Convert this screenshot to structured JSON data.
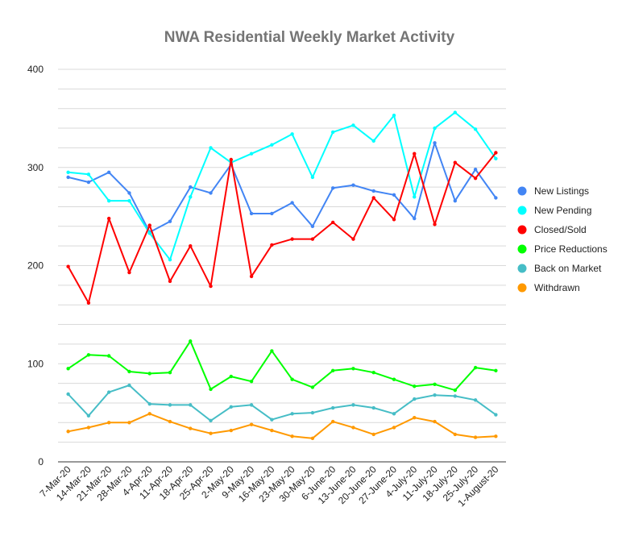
{
  "chart_data": {
    "type": "line",
    "title": "NWA Residential Weekly Market Activity",
    "xlabel": "",
    "ylabel": "",
    "ylim": [
      0,
      400
    ],
    "yticks": [
      "0",
      "100",
      "200",
      "300",
      "400"
    ],
    "grid": true,
    "legend_position": "right",
    "categories": [
      "7-Mar-20",
      "14-Mar-20",
      "21-Mar-20",
      "28-Mar-20",
      "4-Apr-20",
      "11-Apr-20",
      "18-Apr-20",
      "25-Apr-20",
      "2-May-20",
      "9-May-20",
      "16-May-20",
      "23-May-20",
      "30-May-20",
      "6-June-20",
      "13-June-20",
      "20-June-20",
      "27-June-20",
      "4-July-20",
      "11-July-20",
      "18-July-20",
      "25-July-20",
      "1-August-20"
    ],
    "series": [
      {
        "name": "New Listings",
        "color": "#4285f4",
        "values": [
          290,
          285,
          295,
          274,
          234,
          245,
          280,
          274,
          303,
          253,
          253,
          264,
          240,
          279,
          282,
          276,
          272,
          248,
          325,
          266,
          298,
          269
        ]
      },
      {
        "name": "New Pending",
        "color": "#00ffff",
        "values": [
          295,
          293,
          266,
          266,
          233,
          206,
          270,
          320,
          305,
          314,
          323,
          334,
          290,
          336,
          343,
          327,
          353,
          270,
          340,
          356,
          339,
          309
        ]
      },
      {
        "name": "Closed/Sold",
        "color": "#ff0000",
        "values": [
          199,
          162,
          248,
          193,
          241,
          184,
          220,
          179,
          308,
          189,
          221,
          227,
          227,
          244,
          227,
          269,
          247,
          314,
          242,
          305,
          289,
          315
        ]
      },
      {
        "name": "Price Reductions",
        "color": "#00ff00",
        "values": [
          95,
          109,
          108,
          92,
          90,
          91,
          123,
          74,
          87,
          82,
          113,
          84,
          76,
          93,
          95,
          91,
          84,
          77,
          79,
          73,
          96,
          93
        ]
      },
      {
        "name": "Back on Market",
        "color": "#46bdc6",
        "values": [
          69,
          47,
          71,
          78,
          59,
          58,
          58,
          42,
          56,
          58,
          43,
          49,
          50,
          55,
          58,
          55,
          49,
          64,
          68,
          67,
          63,
          48
        ]
      },
      {
        "name": "Withdrawn",
        "color": "#ff9900",
        "values": [
          31,
          35,
          40,
          40,
          49,
          41,
          34,
          29,
          32,
          38,
          32,
          26,
          24,
          41,
          35,
          28,
          35,
          45,
          41,
          28,
          25,
          26
        ]
      }
    ]
  }
}
